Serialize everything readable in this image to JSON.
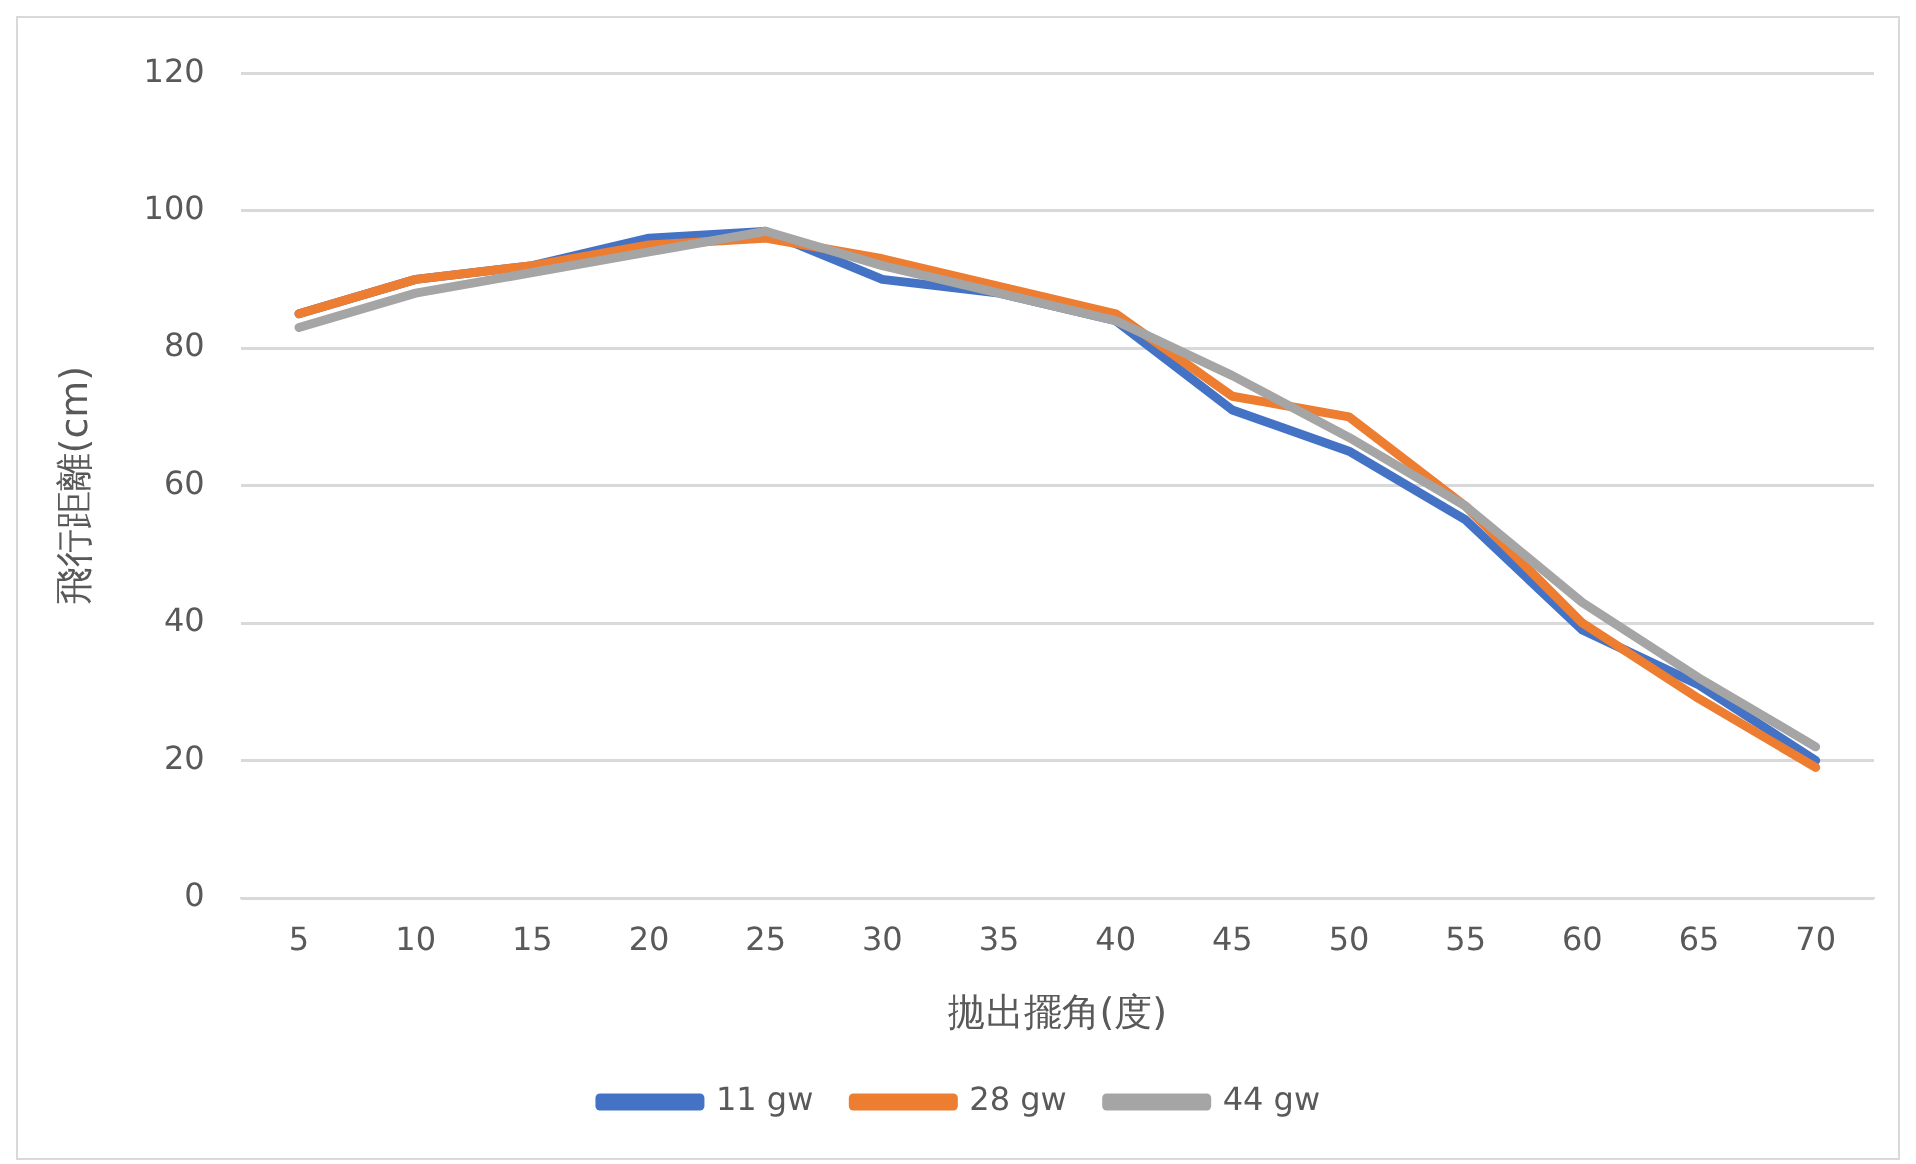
{
  "chart_data": {
    "type": "line",
    "xlabel": "拋出擺角(度)",
    "ylabel": "飛行距離(cm)",
    "categories": [
      "5",
      "10",
      "15",
      "20",
      "25",
      "30",
      "35",
      "40",
      "45",
      "50",
      "55",
      "60",
      "65",
      "70"
    ],
    "series": [
      {
        "name": "11 gw",
        "color": "#4472c4",
        "values": [
          85,
          90,
          92,
          96,
          97,
          90,
          88,
          84,
          71,
          65,
          55,
          39,
          31,
          20
        ]
      },
      {
        "name": "28 gw",
        "color": "#ed7d31",
        "values": [
          85,
          90,
          92,
          95,
          96,
          93,
          89,
          85,
          73,
          70,
          57,
          40,
          29,
          19
        ]
      },
      {
        "name": "44 gw",
        "color": "#a5a5a5",
        "values": [
          83,
          88,
          91,
          94,
          97,
          92,
          88,
          84,
          76,
          67,
          57,
          43,
          32,
          22
        ]
      }
    ],
    "ylim": [
      0,
      120
    ],
    "yticks": [
      0,
      20,
      40,
      60,
      80,
      100,
      120
    ],
    "grid": "y",
    "legend": "bottom",
    "marker": "none",
    "line_style": "solid"
  }
}
